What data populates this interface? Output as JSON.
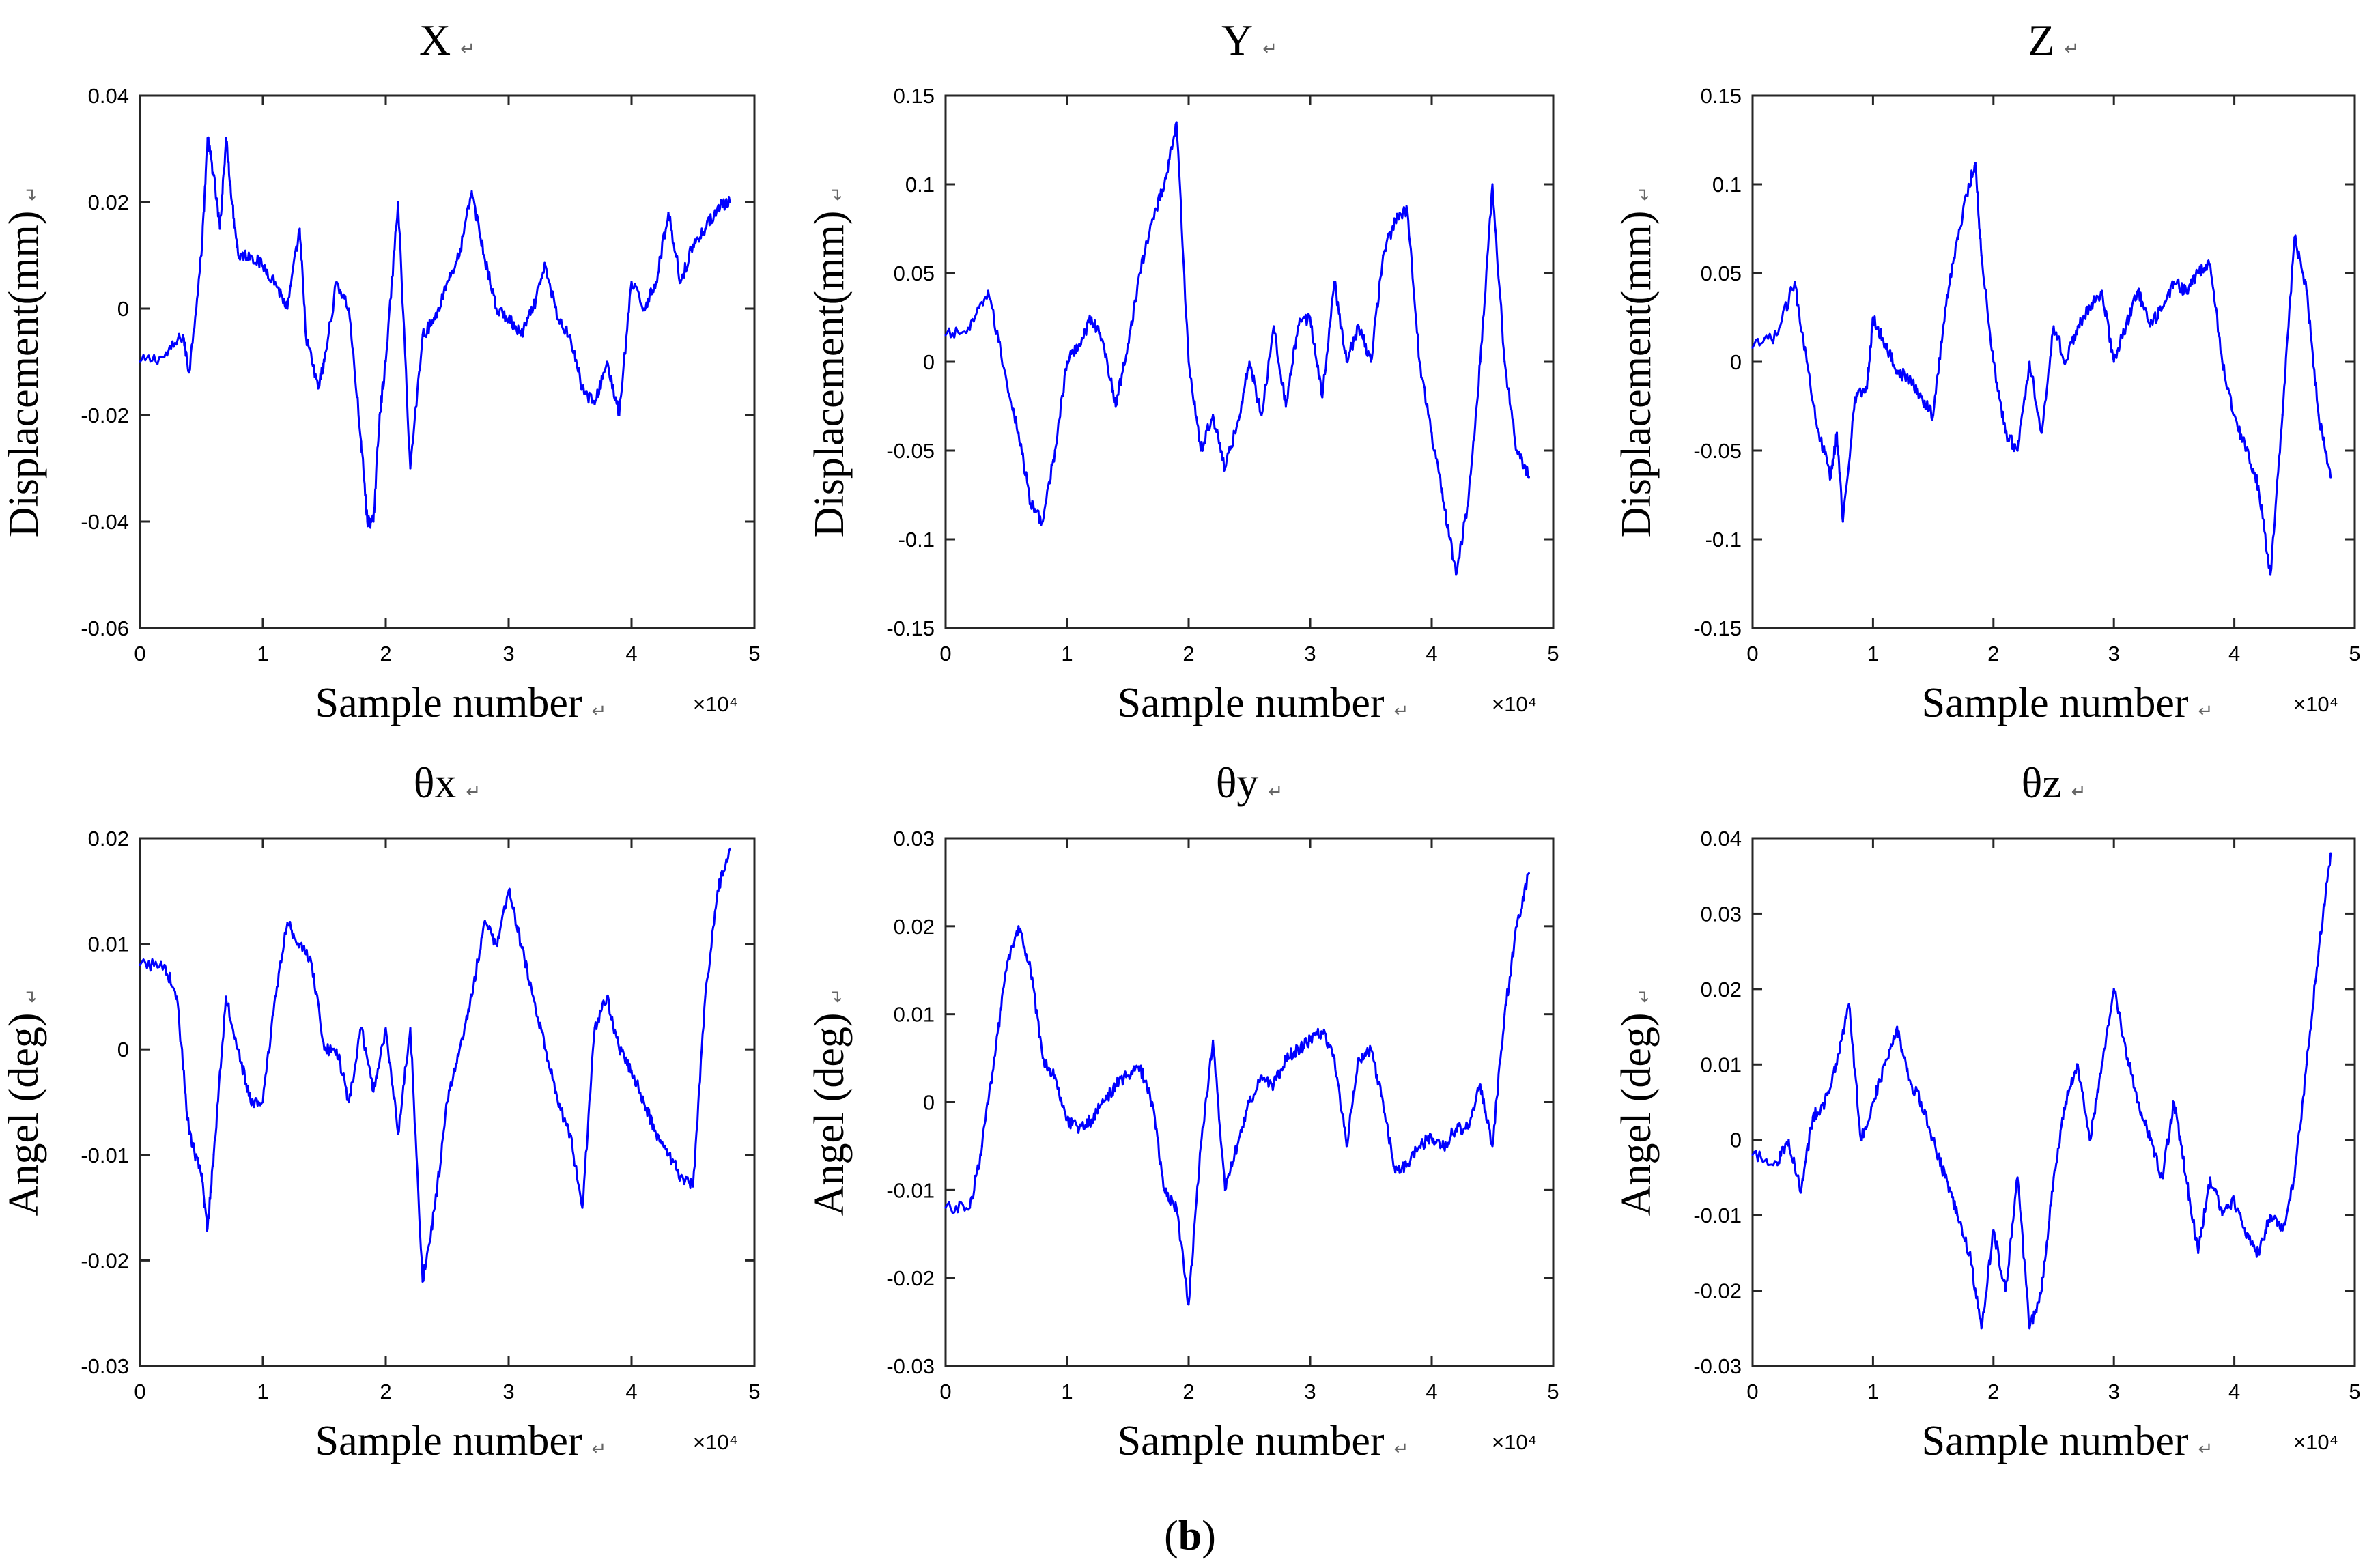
{
  "figure": {
    "caption_open": "(",
    "caption_letter": "b",
    "caption_close": ")",
    "return_mark": "↵",
    "line_color": "#0000ff"
  },
  "chart_data": [
    {
      "type": "line",
      "title": "X",
      "xlabel": "Sample number",
      "ylabel": "Displacement(mm)",
      "x_multiplier": "×10⁴",
      "xlim": [
        0,
        5
      ],
      "ylim": [
        -0.06,
        0.04
      ],
      "xticks": [
        "0",
        "1",
        "2",
        "3",
        "4",
        "5"
      ],
      "yticks": [
        "-0.06",
        "-0.04",
        "-0.02",
        "0",
        "0.02",
        "0.04"
      ],
      "x": [
        0,
        0.2,
        0.35,
        0.4,
        0.5,
        0.55,
        0.6,
        0.65,
        0.7,
        0.75,
        0.8,
        0.9,
        1.0,
        1.1,
        1.2,
        1.3,
        1.35,
        1.45,
        1.5,
        1.6,
        1.7,
        1.8,
        1.85,
        1.9,
        1.95,
        2.0,
        2.1,
        2.2,
        2.3,
        2.4,
        2.5,
        2.6,
        2.7,
        2.8,
        2.9,
        3.0,
        3.1,
        3.2,
        3.3,
        3.4,
        3.5,
        3.6,
        3.7,
        3.8,
        3.9,
        4.0,
        4.1,
        4.2,
        4.3,
        4.4,
        4.5,
        4.6,
        4.7,
        4.8
      ],
      "y": [
        -0.01,
        -0.009,
        -0.005,
        -0.012,
        0.01,
        0.032,
        0.025,
        0.015,
        0.032,
        0.02,
        0.01,
        0.01,
        0.008,
        0.005,
        0.0,
        0.015,
        -0.005,
        -0.015,
        -0.01,
        0.005,
        0.0,
        -0.025,
        -0.04,
        -0.04,
        -0.02,
        -0.01,
        0.02,
        -0.03,
        -0.005,
        -0.002,
        0.005,
        0.01,
        0.022,
        0.01,
        0.0,
        -0.002,
        -0.005,
        0.0,
        0.008,
        -0.002,
        -0.005,
        -0.015,
        -0.018,
        -0.01,
        -0.02,
        0.005,
        0.0,
        0.005,
        0.018,
        0.005,
        0.012,
        0.015,
        0.019,
        0.02
      ]
    },
    {
      "type": "line",
      "title": "Y",
      "xlabel": "Sample number",
      "ylabel": "Displacement(mm)",
      "x_multiplier": "×10⁴",
      "xlim": [
        0,
        5
      ],
      "ylim": [
        -0.15,
        0.15
      ],
      "xticks": [
        "0",
        "1",
        "2",
        "3",
        "4",
        "5"
      ],
      "yticks": [
        "-0.15",
        "-0.1",
        "-0.05",
        "0",
        "0.05",
        "0.1",
        "0.15"
      ],
      "x": [
        0,
        0.2,
        0.35,
        0.5,
        0.6,
        0.7,
        0.8,
        0.9,
        1.0,
        1.1,
        1.2,
        1.3,
        1.4,
        1.5,
        1.6,
        1.7,
        1.8,
        1.9,
        2.0,
        2.1,
        2.2,
        2.3,
        2.4,
        2.5,
        2.6,
        2.7,
        2.8,
        2.9,
        3.0,
        3.1,
        3.2,
        3.3,
        3.4,
        3.5,
        3.6,
        3.7,
        3.8,
        3.9,
        4.0,
        4.1,
        4.2,
        4.3,
        4.4,
        4.5,
        4.6,
        4.7,
        4.8
      ],
      "y": [
        0.015,
        0.018,
        0.04,
        -0.01,
        -0.04,
        -0.08,
        -0.09,
        -0.05,
        0.0,
        0.01,
        0.025,
        0.01,
        -0.025,
        0.01,
        0.05,
        0.08,
        0.1,
        0.135,
        0.0,
        -0.05,
        -0.03,
        -0.06,
        -0.035,
        0.0,
        -0.03,
        0.02,
        -0.025,
        0.02,
        0.025,
        -0.02,
        0.045,
        0.0,
        0.02,
        0.0,
        0.06,
        0.08,
        0.085,
        0.0,
        -0.04,
        -0.08,
        -0.12,
        -0.08,
        0.0,
        0.1,
        0.0,
        -0.05,
        -0.065
      ]
    },
    {
      "type": "line",
      "title": "Z",
      "xlabel": "Sample number",
      "ylabel": "Displacement(mm)",
      "x_multiplier": "×10⁴",
      "xlim": [
        0,
        5
      ],
      "ylim": [
        -0.15,
        0.15
      ],
      "xticks": [
        "0",
        "1",
        "2",
        "3",
        "4",
        "5"
      ],
      "yticks": [
        "-0.15",
        "-0.1",
        "-0.05",
        "0",
        "0.05",
        "0.1",
        "0.15"
      ],
      "x": [
        0,
        0.2,
        0.35,
        0.45,
        0.55,
        0.65,
        0.7,
        0.75,
        0.85,
        0.95,
        1.0,
        1.1,
        1.2,
        1.3,
        1.4,
        1.5,
        1.6,
        1.7,
        1.8,
        1.85,
        1.9,
        2.0,
        2.1,
        2.2,
        2.3,
        2.4,
        2.5,
        2.6,
        2.7,
        2.8,
        2.9,
        3.0,
        3.1,
        3.2,
        3.3,
        3.4,
        3.5,
        3.6,
        3.7,
        3.8,
        3.9,
        4.0,
        4.1,
        4.2,
        4.3,
        4.4,
        4.5,
        4.6,
        4.7,
        4.8
      ],
      "y": [
        0.008,
        0.015,
        0.045,
        0.0,
        -0.04,
        -0.065,
        -0.04,
        -0.09,
        -0.02,
        -0.015,
        0.025,
        0.01,
        -0.005,
        -0.01,
        -0.02,
        -0.03,
        0.03,
        0.07,
        0.1,
        0.112,
        0.06,
        0.0,
        -0.04,
        -0.05,
        0.0,
        -0.04,
        0.02,
        0.0,
        0.02,
        0.03,
        0.04,
        0.0,
        0.02,
        0.04,
        0.02,
        0.03,
        0.045,
        0.04,
        0.05,
        0.055,
        0.0,
        -0.03,
        -0.05,
        -0.07,
        -0.12,
        -0.03,
        0.07,
        0.04,
        -0.03,
        -0.065
      ]
    },
    {
      "type": "line",
      "title": "θx",
      "xlabel": "Sample number",
      "ylabel": "Angel (deg)",
      "x_multiplier": "×10⁴",
      "xlim": [
        0,
        5
      ],
      "ylim": [
        -0.03,
        0.02
      ],
      "xticks": [
        "0",
        "1",
        "2",
        "3",
        "4",
        "5"
      ],
      "yticks": [
        "-0.03",
        "-0.02",
        "-0.01",
        "0",
        "0.01",
        "0.02"
      ],
      "x": [
        0,
        0.2,
        0.3,
        0.4,
        0.5,
        0.55,
        0.6,
        0.7,
        0.8,
        0.9,
        1.0,
        1.1,
        1.2,
        1.3,
        1.4,
        1.5,
        1.6,
        1.7,
        1.8,
        1.9,
        2.0,
        2.1,
        2.2,
        2.3,
        2.4,
        2.5,
        2.6,
        2.7,
        2.8,
        2.9,
        3.0,
        3.1,
        3.2,
        3.3,
        3.4,
        3.5,
        3.6,
        3.7,
        3.8,
        3.9,
        4.0,
        4.1,
        4.2,
        4.3,
        4.4,
        4.5,
        4.6,
        4.7,
        4.8
      ],
      "y": [
        0.008,
        0.008,
        0.005,
        -0.008,
        -0.012,
        -0.017,
        -0.01,
        0.005,
        0.0,
        -0.005,
        -0.005,
        0.005,
        0.012,
        0.01,
        0.008,
        0.0,
        0.0,
        -0.005,
        0.002,
        -0.004,
        0.002,
        -0.008,
        0.002,
        -0.022,
        -0.015,
        -0.005,
        0.0,
        0.005,
        0.012,
        0.01,
        0.015,
        0.01,
        0.005,
        0.0,
        -0.005,
        -0.008,
        -0.015,
        0.002,
        0.005,
        0.0,
        -0.002,
        -0.005,
        -0.008,
        -0.01,
        -0.012,
        -0.013,
        0.005,
        0.015,
        0.019
      ]
    },
    {
      "type": "line",
      "title": "θy",
      "xlabel": "Sample number",
      "ylabel": "Angel (deg)",
      "x_multiplier": "×10⁴",
      "xlim": [
        0,
        5
      ],
      "ylim": [
        -0.03,
        0.03
      ],
      "xticks": [
        "0",
        "1",
        "2",
        "3",
        "4",
        "5"
      ],
      "yticks": [
        "-0.03",
        "-0.02",
        "-0.01",
        "0",
        "0.01",
        "0.02",
        "0.03"
      ],
      "x": [
        0,
        0.2,
        0.3,
        0.4,
        0.5,
        0.6,
        0.7,
        0.8,
        0.9,
        1.0,
        1.1,
        1.2,
        1.3,
        1.4,
        1.5,
        1.6,
        1.7,
        1.8,
        1.9,
        2.0,
        2.1,
        2.2,
        2.3,
        2.4,
        2.5,
        2.6,
        2.7,
        2.8,
        2.9,
        3.0,
        3.1,
        3.2,
        3.3,
        3.4,
        3.5,
        3.6,
        3.7,
        3.8,
        3.9,
        4.0,
        4.1,
        4.2,
        4.3,
        4.4,
        4.5,
        4.6,
        4.7,
        4.8
      ],
      "y": [
        -0.012,
        -0.012,
        -0.005,
        0.005,
        0.015,
        0.02,
        0.015,
        0.005,
        0.003,
        -0.002,
        -0.003,
        -0.002,
        0.0,
        0.002,
        0.003,
        0.004,
        0.0,
        -0.01,
        -0.012,
        -0.023,
        -0.005,
        0.007,
        -0.01,
        -0.005,
        0.0,
        0.003,
        0.002,
        0.005,
        0.006,
        0.007,
        0.008,
        0.005,
        -0.005,
        0.005,
        0.006,
        0.0,
        -0.008,
        -0.007,
        -0.005,
        -0.004,
        -0.005,
        -0.003,
        -0.003,
        0.002,
        -0.005,
        0.01,
        0.02,
        0.026
      ]
    },
    {
      "type": "line",
      "title": "θz",
      "xlabel": "Sample number",
      "ylabel": "Angel (deg)",
      "x_multiplier": "×10⁴",
      "xlim": [
        0,
        5
      ],
      "ylim": [
        -0.03,
        0.04
      ],
      "xticks": [
        "0",
        "1",
        "2",
        "3",
        "4",
        "5"
      ],
      "yticks": [
        "-0.03",
        "-0.02",
        "-0.01",
        "0",
        "0.01",
        "0.02",
        "0.03",
        "0.04"
      ],
      "x": [
        0,
        0.2,
        0.3,
        0.4,
        0.5,
        0.6,
        0.7,
        0.8,
        0.9,
        1.0,
        1.1,
        1.2,
        1.3,
        1.4,
        1.5,
        1.6,
        1.7,
        1.8,
        1.9,
        2.0,
        2.1,
        2.2,
        2.3,
        2.4,
        2.5,
        2.6,
        2.7,
        2.8,
        2.9,
        3.0,
        3.1,
        3.2,
        3.3,
        3.4,
        3.5,
        3.6,
        3.7,
        3.8,
        3.9,
        4.0,
        4.1,
        4.2,
        4.3,
        4.4,
        4.5,
        4.6,
        4.7,
        4.8
      ],
      "y": [
        -0.002,
        -0.003,
        0.0,
        -0.007,
        0.003,
        0.005,
        0.01,
        0.018,
        0.0,
        0.005,
        0.01,
        0.015,
        0.008,
        0.005,
        0.0,
        -0.005,
        -0.01,
        -0.015,
        -0.025,
        -0.012,
        -0.02,
        -0.005,
        -0.025,
        -0.02,
        -0.005,
        0.005,
        0.01,
        0.0,
        0.01,
        0.02,
        0.012,
        0.005,
        0.0,
        -0.005,
        0.005,
        -0.005,
        -0.015,
        -0.005,
        -0.01,
        -0.008,
        -0.013,
        -0.015,
        -0.01,
        -0.012,
        -0.005,
        0.01,
        0.025,
        0.038
      ]
    }
  ]
}
